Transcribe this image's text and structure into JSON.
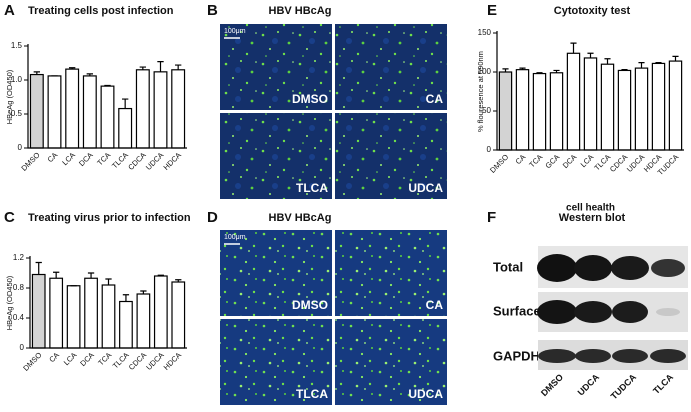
{
  "chart_data": [
    {
      "type": "bar",
      "panel": "A",
      "title": "Treating cells post infection",
      "ylabel": "HBeAg (OD450)",
      "categories": [
        "DMSO",
        "CA",
        "LCA",
        "DCA",
        "TCA",
        "TLCA",
        "CDCA",
        "UDCA",
        "HDCA"
      ],
      "values": [
        1.08,
        1.06,
        1.16,
        1.06,
        0.91,
        0.58,
        1.15,
        1.12,
        1.15
      ],
      "errors": [
        0.04,
        0,
        0.02,
        0.03,
        0.01,
        0.14,
        0.04,
        0.15,
        0.07
      ],
      "colors": [
        "#d3d3d3",
        "#ffffff",
        "#ffffff",
        "#ffffff",
        "#ffffff",
        "#ffffff",
        "#ffffff",
        "#ffffff",
        "#ffffff"
      ],
      "ylim": [
        0,
        1.5
      ],
      "yticks": [
        0,
        0.5,
        {
          "value": 1,
          "label": "1.0"
        },
        1.5
      ]
    },
    {
      "type": "bar",
      "panel": "C",
      "title": "Treating virus prior to infection",
      "ylabel": "HBeAg (OD450)",
      "categories": [
        "DMSO",
        "CA",
        "LCA",
        "DCA",
        "TCA",
        "TLCA",
        "CDCA",
        "UDCA",
        "HDCA"
      ],
      "values": [
        0.98,
        0.93,
        0.83,
        0.93,
        0.84,
        0.62,
        0.72,
        0.96,
        0.88
      ],
      "errors": [
        0.16,
        0.08,
        0,
        0.07,
        0.08,
        0.09,
        0.04,
        0.01,
        0.03
      ],
      "colors": [
        "#d3d3d3",
        "#ffffff",
        "#ffffff",
        "#ffffff",
        "#ffffff",
        "#ffffff",
        "#ffffff",
        "#ffffff",
        "#ffffff"
      ],
      "ylim": [
        0,
        1.2
      ],
      "yticks": [
        0,
        0.4,
        0.8,
        1.2
      ]
    },
    {
      "type": "bar",
      "panel": "E",
      "title": "Cytotoxity test",
      "ylabel": "% flouresence at 590nm",
      "xlabel": "cell health",
      "categories": [
        "DMSO",
        "CA",
        "TCA",
        "GCA",
        "DCA",
        "LCA",
        "TLCA",
        "CDCA",
        "UDCA",
        "HDCA",
        "TUDCA"
      ],
      "values": [
        100,
        103,
        98,
        99,
        124,
        118,
        110,
        102,
        105,
        111,
        114
      ],
      "errors": [
        4,
        2,
        1,
        3,
        13,
        6,
        7,
        1,
        7,
        1,
        6
      ],
      "colors": [
        "#d3d3d3",
        "#ffffff",
        "#ffffff",
        "#ffffff",
        "#ffffff",
        "#ffffff",
        "#ffffff",
        "#ffffff",
        "#ffffff",
        "#ffffff",
        "#ffffff"
      ],
      "ylim": [
        0,
        150
      ],
      "yticks": [
        0,
        50,
        100,
        150
      ]
    }
  ],
  "images": [
    {
      "panel": "B",
      "title": "HBV HBcAg",
      "scale_bar": "100μm",
      "labels": [
        "DMSO",
        "CA",
        "TLCA",
        "UDCA"
      ]
    },
    {
      "panel": "D",
      "title": "HBV HBcAg",
      "scale_bar": "100μm",
      "labels": [
        "DMSO",
        "CA",
        "TLCA",
        "UDCA"
      ]
    }
  ],
  "blot": {
    "panel": "F",
    "title": "Western blot",
    "rows": [
      "Total",
      "Surface",
      "GAPDH"
    ],
    "lanes": [
      "DMSO",
      "UDCA",
      "TUDCA",
      "TLCA"
    ]
  }
}
